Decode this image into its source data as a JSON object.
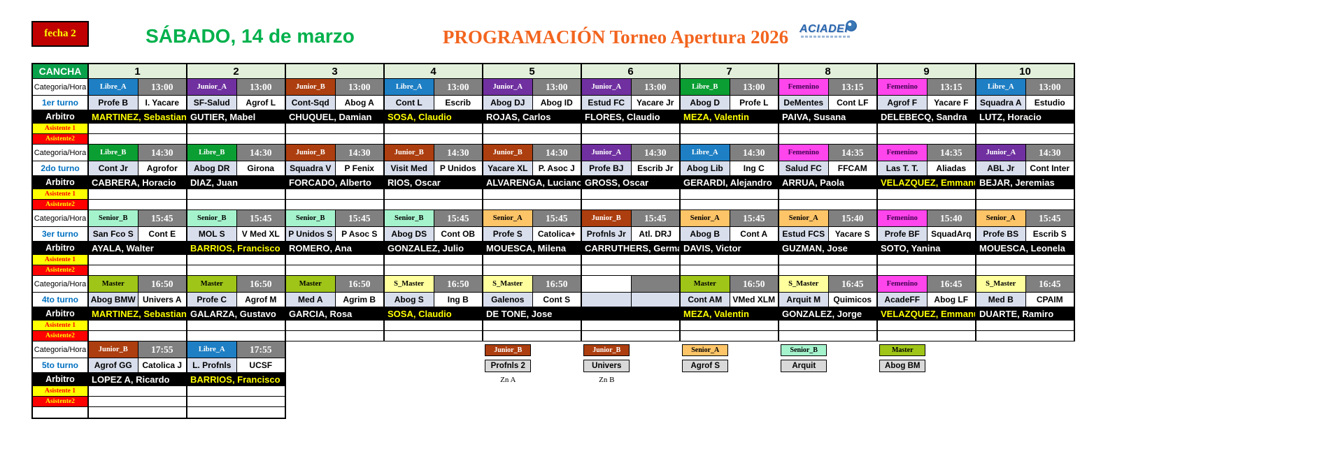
{
  "header": {
    "fecha_label": "fecha 2",
    "date_title": "SÁBADO, 14 de marzo",
    "program_title": "PROGRAMACIÓN Torneo Apertura 2026",
    "logo_text": "ACIADEP"
  },
  "row_labels": {
    "cancha": "CANCHA",
    "categoria_hora": "Categoria/Hora",
    "arbitro": "Arbitro",
    "asistente1": "Asistente 1",
    "asistente2": "Asistente2"
  },
  "canchas": [
    "1",
    "2",
    "3",
    "4",
    "5",
    "6",
    "7",
    "8",
    "9",
    "10"
  ],
  "category_colors": {
    "Libre_A": {
      "bg": "#1E7FC4",
      "fg": "#FFFFFF"
    },
    "Libre_B": {
      "bg": "#0B9E33",
      "fg": "#FFFFFF"
    },
    "Junior_A": {
      "bg": "#7030A0",
      "fg": "#FFFFFF"
    },
    "Junior_B": {
      "bg": "#AC3E0F",
      "fg": "#FFFFFF"
    },
    "Femenino": {
      "bg": "#FF45EC",
      "fg": "#3F0050"
    },
    "Senior_A": {
      "bg": "#FDC468",
      "fg": "#000000"
    },
    "Senior_B": {
      "bg": "#A5F3CD",
      "fg": "#000000"
    },
    "Master": {
      "bg": "#9FC519",
      "fg": "#000000"
    },
    "S_Master": {
      "bg": "#FFFF9E",
      "fg": "#000000"
    }
  },
  "accent_colors": {
    "arbitro_highlight": "#FFFF00",
    "time_bg": "#808080",
    "team1_bg": "#D8DEEC",
    "header_green": "#0AA14B",
    "header_light_green": "#E2EFDA",
    "asistente1_bg": "#FFFF00",
    "asistente1_fg": "#FF0000",
    "asistente2_bg": "#FF0000",
    "asistente2_fg": "#FFFF00",
    "date_color": "#00B14C",
    "program_color": "#F2641E",
    "fecha_bg": "#C00000",
    "fecha_fg": "#FFFF00",
    "logo_color": "#2B66AE"
  },
  "turnos": [
    {
      "label": "1er turno",
      "matches": [
        {
          "category": "Libre_A",
          "time": "13:00",
          "team1": "Profe B",
          "team2": "I. Yacare",
          "arbitro": "MARTINEZ, Sebastian",
          "hl": true
        },
        {
          "category": "Junior_A",
          "time": "13:00",
          "team1": "SF-Salud",
          "team2": "Agrof L",
          "arbitro": "GUTIER, Mabel",
          "hl": false
        },
        {
          "category": "Junior_B",
          "time": "13:00",
          "team1": "Cont-Sqd",
          "team2": "Abog A",
          "arbitro": "CHUQUEL, Damian",
          "hl": false
        },
        {
          "category": "Libre_A",
          "time": "13:00",
          "team1": "Cont L",
          "team2": "Escrib",
          "arbitro": "SOSA, Claudio",
          "hl": true
        },
        {
          "category": "Junior_A",
          "time": "13:00",
          "team1": "Abog DJ",
          "team2": "Abog ID",
          "arbitro": "ROJAS, Carlos",
          "hl": false
        },
        {
          "category": "Junior_A",
          "time": "13:00",
          "team1": "Estud FC",
          "team2": "Yacare Jr",
          "arbitro": "FLORES, Claudio",
          "hl": false
        },
        {
          "category": "Libre_B",
          "time": "13:00",
          "team1": "Abog D",
          "team2": "Profe L",
          "arbitro": "MEZA, Valentin",
          "hl": true
        },
        {
          "category": "Femenino",
          "time": "13:15",
          "team1": "DeMentes",
          "team2": "Cont LF",
          "arbitro": "PAIVA, Susana",
          "hl": false
        },
        {
          "category": "Femenino",
          "time": "13:15",
          "team1": "Agrof F",
          "team2": "Yacare F",
          "arbitro": "DELEBECQ, Sandra",
          "hl": false
        },
        {
          "category": "Libre_A",
          "time": "13:00",
          "team1": "Squadra A",
          "team2": "Estudio",
          "arbitro": "LUTZ, Horacio",
          "hl": false
        }
      ]
    },
    {
      "label": "2do turno",
      "matches": [
        {
          "category": "Libre_B",
          "time": "14:30",
          "team1": "Cont Jr",
          "team2": "Agrofor",
          "arbitro": "CABRERA, Horacio",
          "hl": false
        },
        {
          "category": "Libre_B",
          "time": "14:30",
          "team1": "Abog DR",
          "team2": "Girona",
          "arbitro": "DIAZ, Juan",
          "hl": false
        },
        {
          "category": "Junior_B",
          "time": "14:30",
          "team1": "Squadra V",
          "team2": "P Fenix",
          "arbitro": "FORCADO, Alberto",
          "hl": false
        },
        {
          "category": "Junior_B",
          "time": "14:30",
          "team1": "Visit Med",
          "team2": "P Unidos",
          "arbitro": "RIOS, Oscar",
          "hl": false
        },
        {
          "category": "Junior_B",
          "time": "14:30",
          "team1": "Yacare XL",
          "team2": "P. Asoc J",
          "arbitro": "ALVARENGA, Luciano",
          "hl": false
        },
        {
          "category": "Junior_A",
          "time": "14:30",
          "team1": "Profe BJ",
          "team2": "Escrib Jr",
          "arbitro": "GROSS, Oscar",
          "hl": false
        },
        {
          "category": "Libre_A",
          "time": "14:30",
          "team1": "Abog Lib",
          "team2": "Ing C",
          "arbitro": "GERARDI, Alejandro",
          "hl": false
        },
        {
          "category": "Femenino",
          "time": "14:35",
          "team1": "Salud FC",
          "team2": "FFCAM",
          "arbitro": "ARRUA, Paola",
          "hl": false
        },
        {
          "category": "Femenino",
          "time": "14:35",
          "team1": "Las T. T.",
          "team2": "Aliadas",
          "arbitro": "VELAZQUEZ, Emmanu",
          "hl": true
        },
        {
          "category": "Junior_A",
          "time": "14:30",
          "team1": "ABL Jr",
          "team2": "Cont Inter",
          "arbitro": "BEJAR, Jeremias",
          "hl": false
        }
      ]
    },
    {
      "label": "3er turno",
      "matches": [
        {
          "category": "Senior_B",
          "time": "15:45",
          "team1": "San Fco S",
          "team2": "Cont E",
          "arbitro": "AYALA, Walter",
          "hl": false
        },
        {
          "category": "Senior_B",
          "time": "15:45",
          "team1": "MOL S",
          "team2": "V Med XL",
          "arbitro": "BARRIOS, Francisco",
          "hl": true
        },
        {
          "category": "Senior_B",
          "time": "15:45",
          "team1": "P Unidos S",
          "team2": "P Asoc S",
          "arbitro": "ROMERO, Ana",
          "hl": false
        },
        {
          "category": "Senior_B",
          "time": "15:45",
          "team1": "Abog DS",
          "team2": "Cont OB",
          "arbitro": "GONZALEZ, Julio",
          "hl": false
        },
        {
          "category": "Senior_A",
          "time": "15:45",
          "team1": "Profe S",
          "team2": "Catolica+",
          "arbitro": "MOUESCA, Milena",
          "hl": false
        },
        {
          "category": "Junior_B",
          "time": "15:45",
          "team1": "Profnls Jr",
          "team2": "Atl. DRJ",
          "arbitro": "CARRUTHERS, Germa",
          "hl": false
        },
        {
          "category": "Senior_A",
          "time": "15:45",
          "team1": "Abog B",
          "team2": "Cont A",
          "arbitro": "DAVIS, Victor",
          "hl": false
        },
        {
          "category": "Senior_A",
          "time": "15:40",
          "team1": "Estud FCS",
          "team2": "Yacare S",
          "arbitro": "GUZMAN, Jose",
          "hl": false
        },
        {
          "category": "Femenino",
          "time": "15:40",
          "team1": "Profe BF",
          "team2": "SquadArq",
          "arbitro": "SOTO, Yanina",
          "hl": false
        },
        {
          "category": "Senior_A",
          "time": "15:45",
          "team1": "Profe BS",
          "team2": "Escrib S",
          "arbitro": "MOUESCA, Leonela",
          "hl": false
        }
      ]
    },
    {
      "label": "4to turno",
      "matches": [
        {
          "category": "Master",
          "time": "16:50",
          "team1": "Abog BMW",
          "team2": "Univers A",
          "arbitro": "MARTINEZ, Sebastian",
          "hl": true
        },
        {
          "category": "Master",
          "time": "16:50",
          "team1": "Profe C",
          "team2": "Agrof M",
          "arbitro": "GALARZA, Gustavo",
          "hl": false
        },
        {
          "category": "Master",
          "time": "16:50",
          "team1": "Med A",
          "team2": "Agrim B",
          "arbitro": "GARCIA, Rosa",
          "hl": false
        },
        {
          "category": "S_Master",
          "time": "16:50",
          "team1": "Abog S",
          "team2": "Ing B",
          "arbitro": "SOSA, Claudio",
          "hl": true
        },
        {
          "category": "S_Master",
          "time": "16:50",
          "team1": "Galenos",
          "team2": "Cont S",
          "arbitro": "DE TONE, Jose",
          "hl": false
        },
        {
          "empty": true
        },
        {
          "category": "Master",
          "time": "16:50",
          "team1": "Cont AM",
          "team2": "VMed XLM",
          "arbitro": "MEZA, Valentin",
          "hl": true
        },
        {
          "category": "S_Master",
          "time": "16:45",
          "team1": "Arquit M",
          "team2": "Quimicos",
          "arbitro": "GONZALEZ, Jorge",
          "hl": false
        },
        {
          "category": "Femenino",
          "time": "16:45",
          "team1": "AcadeFF",
          "team2": "Abog LF",
          "arbitro": "VELAZQUEZ, Emmanu",
          "hl": true
        },
        {
          "category": "S_Master",
          "time": "16:45",
          "team1": "Med B",
          "team2": "CPAIM",
          "arbitro": "DUARTE, Ramiro",
          "hl": false
        }
      ]
    },
    {
      "label": "5to turno",
      "partial": true,
      "extra_row": true,
      "matches": [
        {
          "category": "Junior_B",
          "time": "17:55",
          "team1": "Agrof GG",
          "team2": "Catolica J",
          "arbitro": "LOPEZ A, Ricardo",
          "hl": false
        },
        {
          "category": "Libre_A",
          "time": "17:55",
          "team1": "L. Profnls",
          "team2": "UCSF",
          "arbitro": "BARRIOS, Francisco",
          "hl": true
        },
        null,
        null,
        {
          "badge_only": true,
          "category": "Junior_B",
          "team1": "Profnls 2",
          "note": "Zn A"
        },
        {
          "badge_only": true,
          "category": "Junior_B",
          "team1": "Univers",
          "note": "Zn B"
        },
        {
          "badge_only": true,
          "category": "Senior_A",
          "team1": "Agrof S"
        },
        {
          "badge_only": true,
          "category": "Senior_B",
          "team1": "Arquit"
        },
        {
          "badge_only": true,
          "category": "Master",
          "team1": "Abog BM"
        },
        null
      ]
    }
  ]
}
